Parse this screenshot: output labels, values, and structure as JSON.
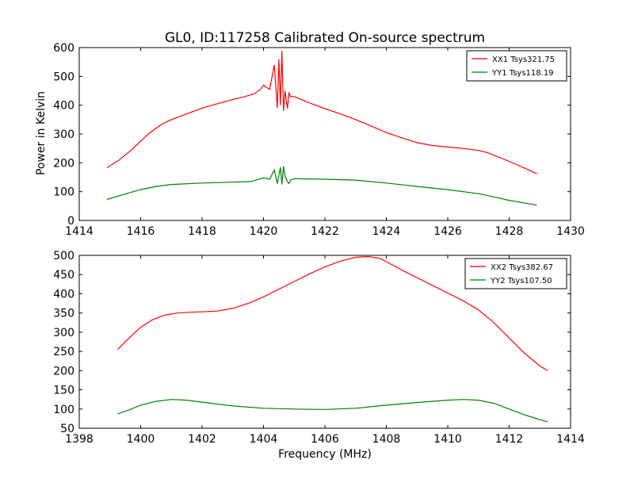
{
  "figure": {
    "title": "GL0, ID:117258 Calibrated On-source spectrum",
    "xlabel": "Frequency (MHz)",
    "ylabel": "Power in Kelvin"
  },
  "chart_data": [
    {
      "type": "line",
      "title": "GL0, ID:117258 Calibrated On-source spectrum",
      "xlabel": "",
      "ylabel": "Power in Kelvin",
      "xlim": [
        1414,
        1430
      ],
      "ylim": [
        0,
        600
      ],
      "xticks": [
        "1414",
        "1416",
        "1418",
        "1420",
        "1422",
        "1424",
        "1426",
        "1428",
        "1430"
      ],
      "yticks": [
        "0",
        "100",
        "200",
        "300",
        "400",
        "500",
        "600"
      ],
      "grid": false,
      "legend_position": "top-right",
      "series": [
        {
          "name": "XX1 Tsys321.75",
          "color": "#ff0000",
          "x": [
            1414.9,
            1415.3,
            1415.7,
            1416.0,
            1416.3,
            1416.7,
            1417.0,
            1417.5,
            1418.0,
            1418.5,
            1419.0,
            1419.4,
            1419.7,
            1419.9,
            1420.0,
            1420.1,
            1420.2,
            1420.35,
            1420.45,
            1420.5,
            1420.55,
            1420.6,
            1420.65,
            1420.7,
            1420.78,
            1420.83,
            1420.88,
            1421.0,
            1421.5,
            1422.0,
            1422.5,
            1423.0,
            1423.5,
            1424.0,
            1424.5,
            1425.0,
            1425.5,
            1426.0,
            1426.5,
            1427.0,
            1427.3,
            1427.6,
            1428.0,
            1428.5,
            1428.9
          ],
          "values": [
            183,
            210,
            245,
            275,
            305,
            335,
            350,
            370,
            390,
            405,
            420,
            430,
            440,
            455,
            470,
            462,
            455,
            540,
            390,
            560,
            400,
            590,
            380,
            450,
            388,
            445,
            430,
            430,
            408,
            388,
            370,
            350,
            328,
            305,
            287,
            270,
            260,
            255,
            250,
            243,
            235,
            222,
            205,
            182,
            162
          ]
        },
        {
          "name": "YY1 Tsys118.19",
          "color": "#008000",
          "x": [
            1414.9,
            1415.5,
            1416.0,
            1416.5,
            1417.0,
            1418.0,
            1419.0,
            1419.6,
            1420.0,
            1420.2,
            1420.35,
            1420.45,
            1420.55,
            1420.6,
            1420.65,
            1420.7,
            1420.78,
            1420.83,
            1420.88,
            1421.0,
            1422.0,
            1423.0,
            1424.0,
            1425.0,
            1426.0,
            1427.0,
            1427.5,
            1428.0,
            1428.9
          ],
          "values": [
            73,
            92,
            107,
            118,
            125,
            130,
            133,
            135,
            148,
            143,
            175,
            128,
            185,
            125,
            188,
            155,
            135,
            128,
            140,
            145,
            143,
            140,
            130,
            118,
            107,
            93,
            82,
            70,
            53
          ]
        }
      ]
    },
    {
      "type": "line",
      "title": "",
      "xlabel": "Frequency (MHz)",
      "ylabel": "",
      "xlim": [
        1398,
        1414
      ],
      "ylim": [
        50,
        500
      ],
      "xticks": [
        "1398",
        "1400",
        "1402",
        "1404",
        "1406",
        "1408",
        "1410",
        "1412",
        "1414"
      ],
      "yticks": [
        "50",
        "100",
        "150",
        "200",
        "250",
        "300",
        "350",
        "400",
        "450",
        "500"
      ],
      "grid": false,
      "legend_position": "top-right",
      "series": [
        {
          "name": "XX2 Tsys382.67",
          "color": "#ff0000",
          "x": [
            1399.25,
            1399.6,
            1400.0,
            1400.4,
            1400.8,
            1401.2,
            1401.6,
            1402.0,
            1402.5,
            1403.0,
            1403.5,
            1404.0,
            1404.5,
            1405.0,
            1405.5,
            1406.0,
            1406.5,
            1407.0,
            1407.4,
            1407.8,
            1408.2,
            1408.6,
            1409.0,
            1409.5,
            1410.0,
            1410.5,
            1411.0,
            1411.5,
            1412.0,
            1412.5,
            1413.0,
            1413.25
          ],
          "values": [
            255,
            283,
            313,
            333,
            345,
            350,
            352,
            353,
            355,
            362,
            375,
            392,
            412,
            432,
            452,
            470,
            485,
            495,
            497,
            492,
            475,
            458,
            442,
            422,
            402,
            382,
            358,
            325,
            285,
            245,
            212,
            200
          ]
        },
        {
          "name": "YY2 Tsys107.50",
          "color": "#008000",
          "x": [
            1399.25,
            1399.6,
            1400.0,
            1400.5,
            1401.0,
            1401.5,
            1402.0,
            1403.0,
            1404.0,
            1405.0,
            1406.0,
            1407.0,
            1408.0,
            1409.0,
            1410.0,
            1410.5,
            1411.0,
            1411.5,
            1412.0,
            1412.5,
            1413.0,
            1413.25
          ],
          "values": [
            87,
            97,
            110,
            120,
            125,
            123,
            118,
            108,
            102,
            100,
            99,
            102,
            110,
            117,
            123,
            125,
            123,
            115,
            100,
            85,
            72,
            67
          ]
        }
      ]
    }
  ]
}
